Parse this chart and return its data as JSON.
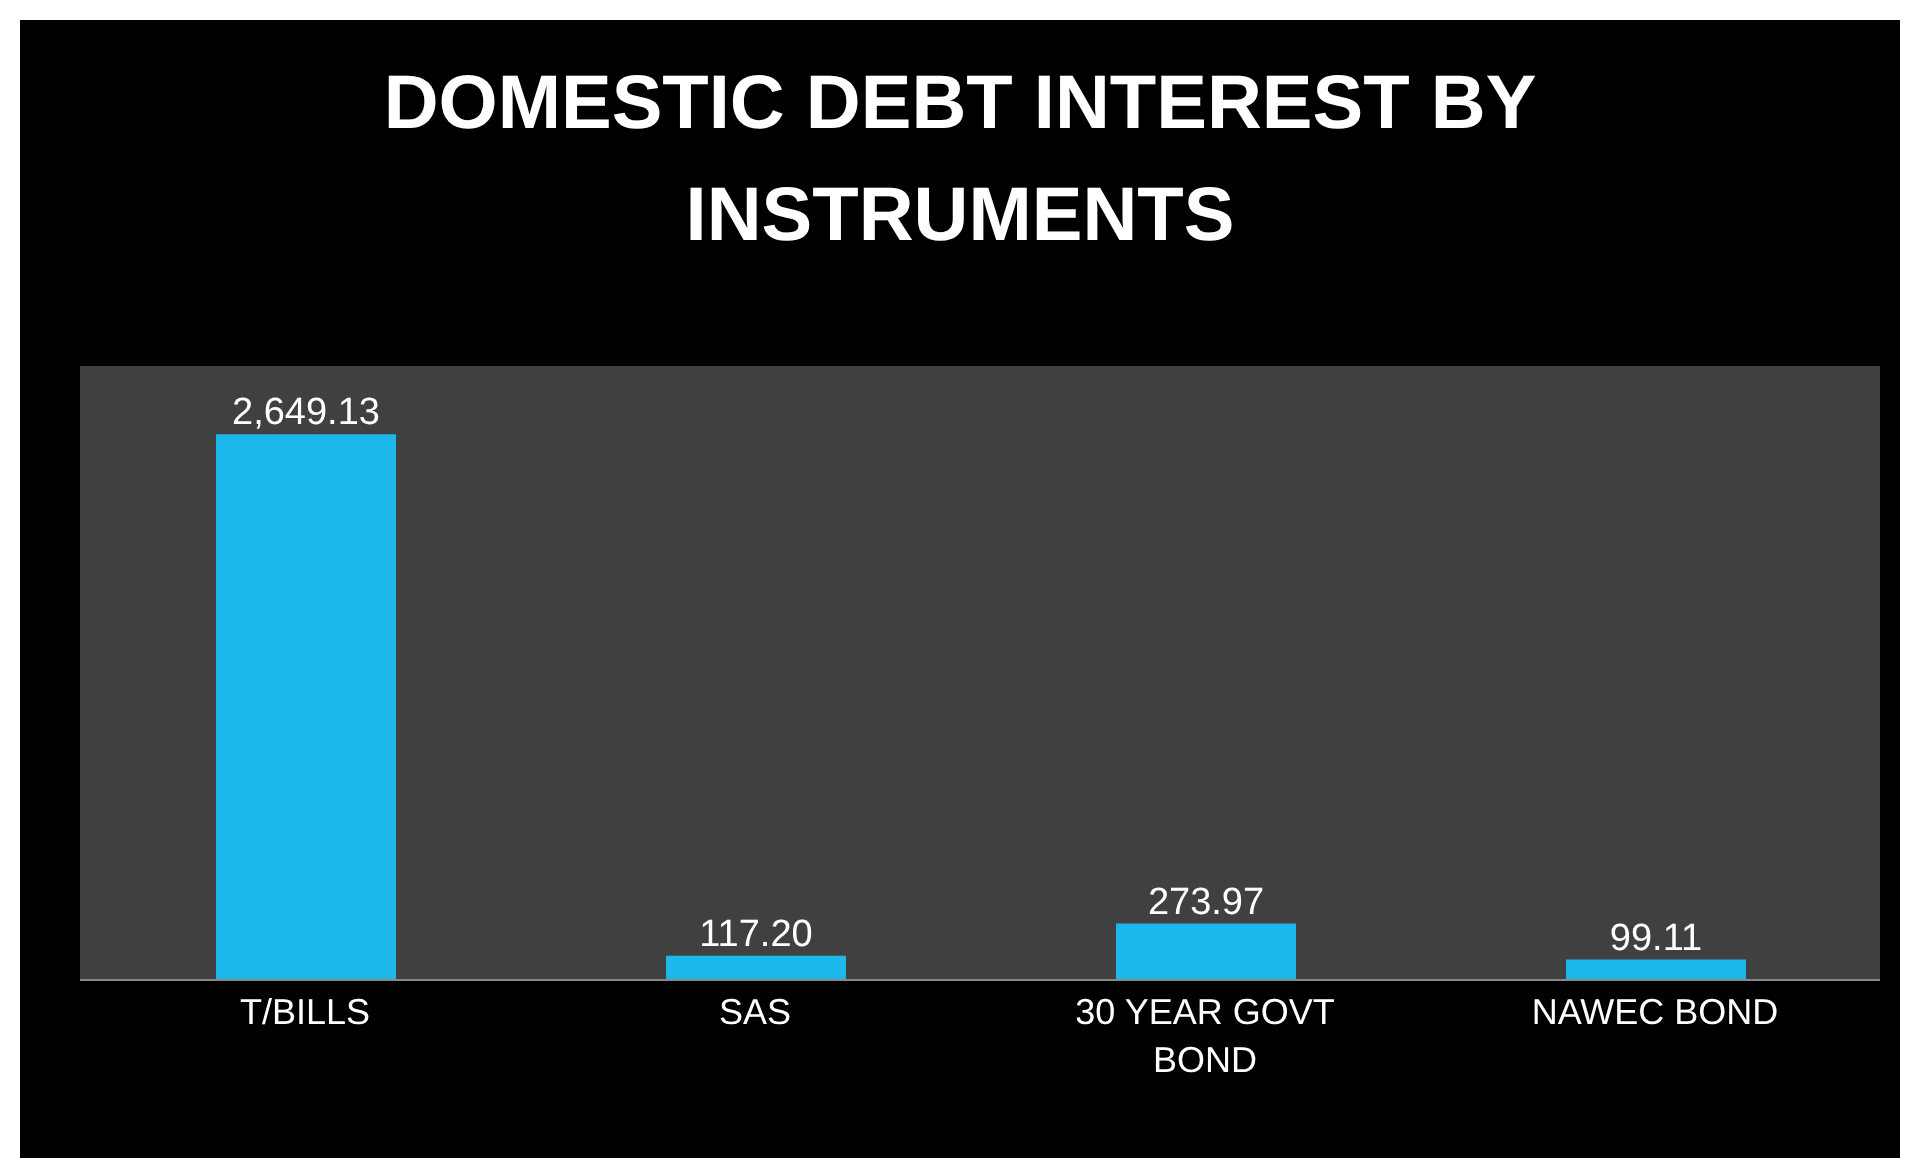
{
  "chart_data": {
    "type": "bar",
    "title": "DOMESTIC DEBT INTEREST BY INSTRUMENTS",
    "categories": [
      "T/BILLS",
      "SAS",
      "30 YEAR GOVT BOND",
      "NAWEC BOND"
    ],
    "values": [
      2649.13,
      117.2,
      273.97,
      99.11
    ],
    "value_labels": [
      "2,649.13",
      "117.20",
      "273.97",
      "99.11"
    ],
    "color": "#1cb8ec"
  }
}
